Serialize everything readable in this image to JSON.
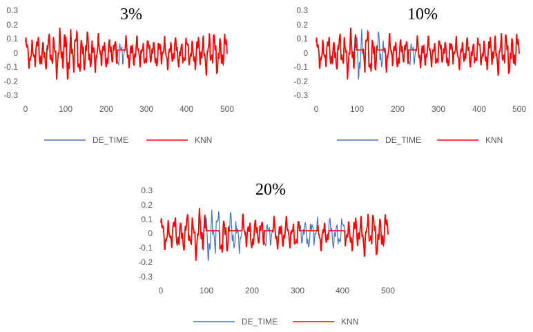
{
  "colors": {
    "de_time": "#4472C4",
    "knn": "#FF0000",
    "axis_text": "#595959"
  },
  "chart_data": [
    {
      "type": "line",
      "title": "3%",
      "xlim": [
        0,
        500
      ],
      "ylim": [
        -0.3,
        0.3
      ],
      "xticks": [
        "0",
        "100",
        "200",
        "300",
        "400",
        "500"
      ],
      "yticks": [
        "0.3",
        "0.2",
        "0.1",
        "0",
        "-0.1",
        "-0.2",
        "-0.3"
      ],
      "grid": false,
      "legend_position": "bottom",
      "missing_ranges": [
        [
          228,
          247
        ]
      ],
      "series": [
        {
          "name": "DE_TIME",
          "values": []
        },
        {
          "name": "KNN",
          "values": []
        }
      ]
    },
    {
      "type": "line",
      "title": "10%",
      "xlim": [
        0,
        500
      ],
      "ylim": [
        -0.3,
        0.3
      ],
      "xticks": [
        "0",
        "100",
        "200",
        "300",
        "400",
        "500"
      ],
      "yticks": [
        "0.3",
        "0.2",
        "0.1",
        "0",
        "-0.1",
        "-0.2",
        "-0.3"
      ],
      "grid": false,
      "legend_position": "bottom",
      "missing_ranges": [
        [
          100,
          115
        ],
        [
          150,
          168
        ],
        [
          228,
          247
        ]
      ],
      "series": [
        {
          "name": "DE_TIME",
          "values": []
        },
        {
          "name": "KNN",
          "values": []
        }
      ]
    },
    {
      "type": "line",
      "title": "20%",
      "xlim": [
        0,
        500
      ],
      "ylim": [
        -0.3,
        0.3
      ],
      "xticks": [
        "0",
        "100",
        "200",
        "300",
        "400",
        "500"
      ],
      "yticks": [
        "0.3",
        "0.2",
        "0.1",
        "0",
        "-0.1",
        "-0.2",
        "-0.3"
      ],
      "grid": false,
      "legend_position": "bottom",
      "missing_ranges": [
        [
          100,
          128
        ],
        [
          150,
          178
        ],
        [
          228,
          245
        ],
        [
          305,
          345
        ],
        [
          370,
          405
        ]
      ],
      "series": [
        {
          "name": "DE_TIME",
          "values": []
        },
        {
          "name": "KNN",
          "values": []
        }
      ]
    }
  ]
}
